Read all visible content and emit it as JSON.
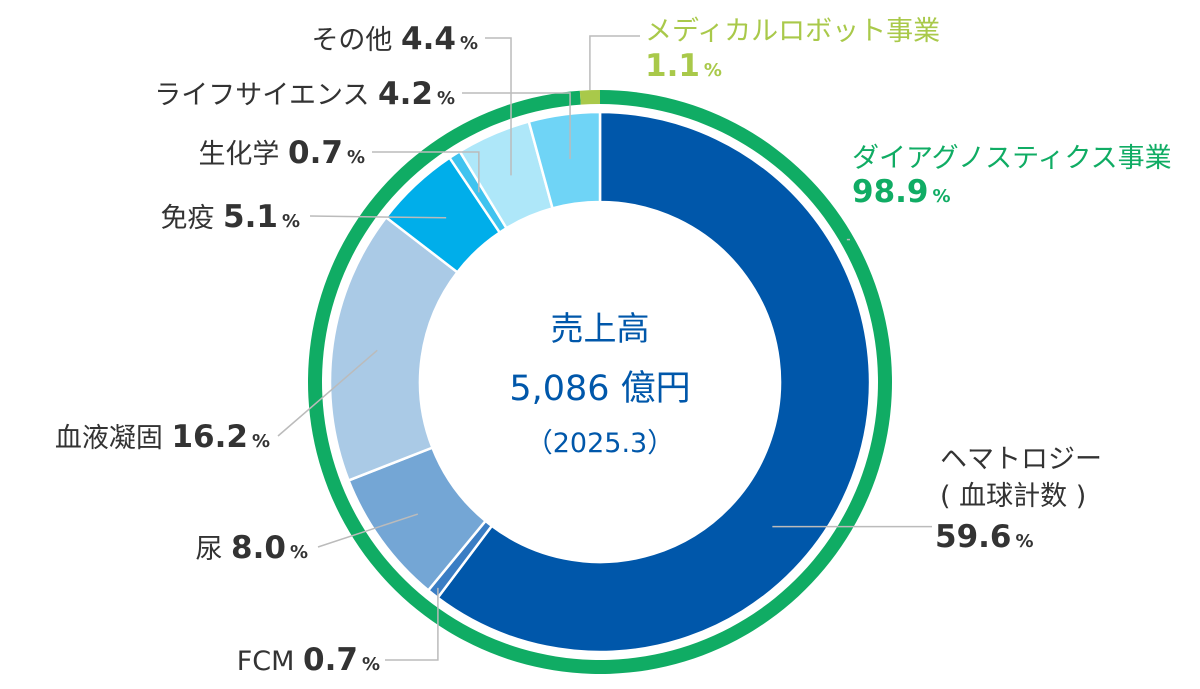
{
  "chart_data": {
    "type": "donut",
    "center": {
      "title": "売上高",
      "value": "5,086 億円",
      "sub": "（2025.3）"
    },
    "outer_ring": [
      {
        "name": "ダイアグノスティクス事業",
        "value": 98.9,
        "color": "#10AC64"
      },
      {
        "name": "メディカルロボット事業",
        "value": 1.1,
        "color": "#A9C94A"
      }
    ],
    "inner_ring": [
      {
        "name": "ヘマトロジー",
        "sub_name": "( 血球計数 )",
        "value": 59.6,
        "color": "#0057AA"
      },
      {
        "name": "FCM",
        "value": 0.7,
        "color": "#3A7DC4"
      },
      {
        "name": "尿",
        "value": 8.0,
        "color": "#74A6D5"
      },
      {
        "name": "血液凝固",
        "value": 16.2,
        "color": "#AACAE6"
      },
      {
        "name": "免疫",
        "value": 5.1,
        "color": "#00AEEA"
      },
      {
        "name": "生化学",
        "value": 0.7,
        "color": "#3FC3EF"
      },
      {
        "name": "その他",
        "value": 4.4,
        "color": "#AEE7F9"
      },
      {
        "name": "ライフサイエンス",
        "value": 4.2,
        "color": "#6FD4F6"
      }
    ],
    "unit": "%",
    "colors": {
      "center_text": "#0057AA",
      "label_text": "#333333",
      "leader_line": "#BBBBBB",
      "separator": "#FFFFFF"
    }
  }
}
